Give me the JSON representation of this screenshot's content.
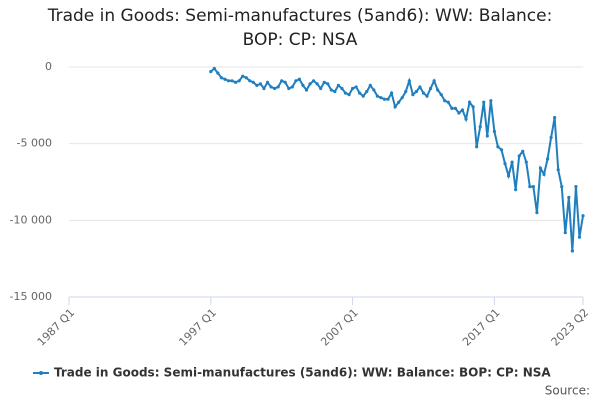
{
  "chart_data": {
    "type": "line",
    "title": "Trade in Goods: Semi-manufactures (5and6): WW: Balance: BOP: CP: NSA",
    "source": "Source:",
    "x": [
      1997,
      1997.25,
      1997.5,
      1997.75,
      1998,
      1998.25,
      1998.5,
      1998.75,
      1999,
      1999.25,
      1999.5,
      1999.75,
      2000,
      2000.25,
      2000.5,
      2000.75,
      2001,
      2001.25,
      2001.5,
      2001.75,
      2002,
      2002.25,
      2002.5,
      2002.75,
      2003,
      2003.25,
      2003.5,
      2003.75,
      2004,
      2004.25,
      2004.5,
      2004.75,
      2005,
      2005.25,
      2005.5,
      2005.75,
      2006,
      2006.25,
      2006.5,
      2006.75,
      2007,
      2007.25,
      2007.5,
      2007.75,
      2008,
      2008.25,
      2008.5,
      2008.75,
      2009,
      2009.25,
      2009.5,
      2009.75,
      2010,
      2010.25,
      2010.5,
      2010.75,
      2011,
      2011.25,
      2011.5,
      2011.75,
      2012,
      2012.25,
      2012.5,
      2012.75,
      2013,
      2013.25,
      2013.5,
      2013.75,
      2014,
      2014.25,
      2014.5,
      2014.75,
      2015,
      2015.25,
      2015.5,
      2015.75,
      2016,
      2016.25,
      2016.5,
      2016.75,
      2017,
      2017.25,
      2017.5,
      2017.75,
      2018,
      2018.25,
      2018.5,
      2018.75,
      2019,
      2019.25,
      2019.5,
      2019.75,
      2020,
      2020.25,
      2020.5,
      2020.75,
      2021,
      2021.25,
      2021.5,
      2021.75,
      2022,
      2022.25,
      2022.5,
      2022.75,
      2023,
      2023.25
    ],
    "series": [
      {
        "name": "Trade in Goods: Semi-manufactures (5and6): WW: Balance: BOP: CP: NSA",
        "color": "#1f7fbf",
        "values": [
          -300,
          -100,
          -400,
          -700,
          -800,
          -900,
          -900,
          -1000,
          -900,
          -600,
          -700,
          -900,
          -1000,
          -1200,
          -1100,
          -1400,
          -1000,
          -1300,
          -1400,
          -1300,
          -900,
          -1000,
          -1400,
          -1300,
          -900,
          -800,
          -1200,
          -1500,
          -1100,
          -900,
          -1100,
          -1400,
          -1000,
          -1100,
          -1500,
          -1600,
          -1200,
          -1400,
          -1700,
          -1800,
          -1400,
          -1300,
          -1700,
          -1900,
          -1600,
          -1200,
          -1500,
          -1900,
          -2000,
          -2100,
          -2100,
          -1700,
          -2600,
          -2300,
          -2000,
          -1600,
          -900,
          -1800,
          -1600,
          -1300,
          -1700,
          -1900,
          -1400,
          -900,
          -1500,
          -1800,
          -2200,
          -2300,
          -2700,
          -2700,
          -3000,
          -2800,
          -3400,
          -2300,
          -2600,
          -5200,
          -3900,
          -2300,
          -4500,
          -2200,
          -4200,
          -5200,
          -5400,
          -6300,
          -7100,
          -6200,
          -8000,
          -5800,
          -5500,
          -6200,
          -7800,
          -7800,
          -9500,
          -6600,
          -7000,
          -6000,
          -4600,
          -3300,
          -6700,
          -7800,
          -10800,
          -8500,
          -12000,
          -7800,
          -11100,
          -9700
        ]
      }
    ],
    "xlim": [
      1987,
      2023.25
    ],
    "xticks": [
      {
        "value": 1987,
        "label": "1987 Q1"
      },
      {
        "value": 1997,
        "label": "1997 Q1"
      },
      {
        "value": 2007,
        "label": "2007 Q1"
      },
      {
        "value": 2017,
        "label": "2017 Q1"
      },
      {
        "value": 2023.25,
        "label": "2023 Q2"
      }
    ],
    "ylim": [
      -15000,
      0
    ],
    "yticks": [
      0,
      {
        "value": -5000,
        "label": "-5 000"
      },
      {
        "value": -10000,
        "label": "-10 000"
      },
      {
        "value": -15000,
        "label": "-15 000"
      }
    ],
    "grid": true
  }
}
